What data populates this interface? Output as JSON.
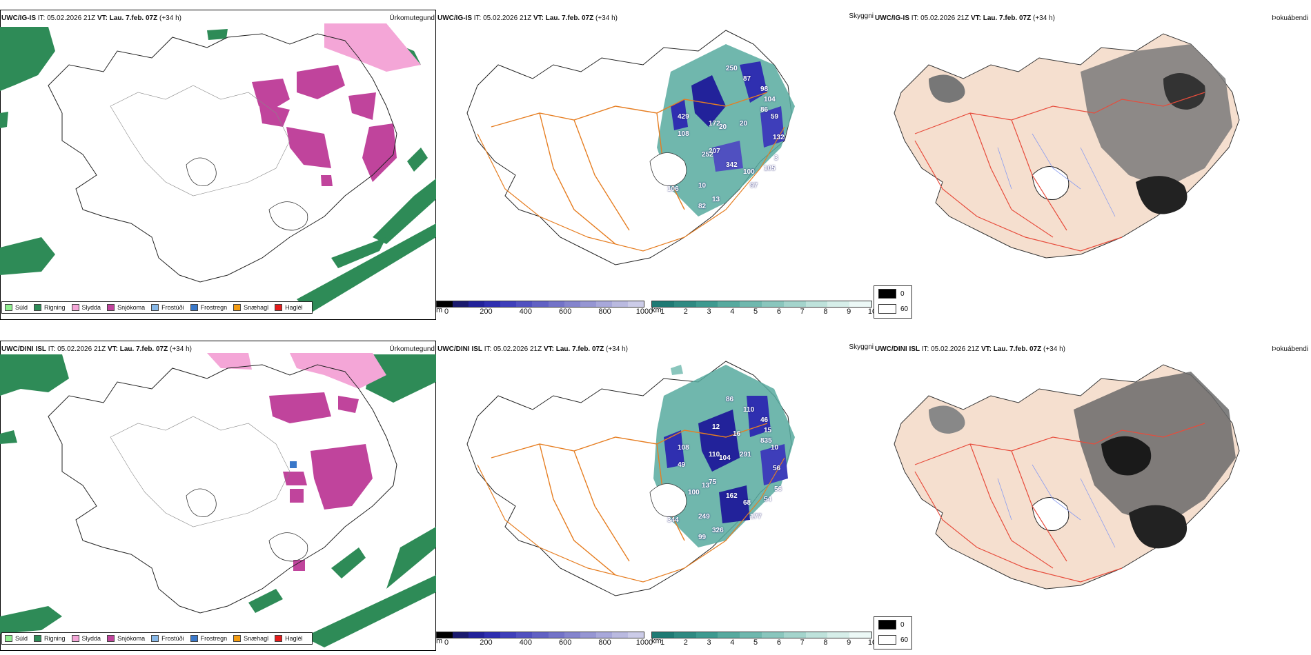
{
  "rows": [
    {
      "model": "UWC/IG-IS",
      "it_label": "IT:",
      "it_value": "05.02.2026 21Z",
      "vt_label": "VT:",
      "vt_value": "Lau. 7.feb. 07Z",
      "lead": "(+34 h)"
    },
    {
      "model": "UWC/DINI ISL",
      "it_label": "IT:",
      "it_value": "05.02.2026 21Z",
      "vt_label": "VT:",
      "vt_value": "Lau. 7.feb. 07Z",
      "lead": "(+34 h)"
    }
  ],
  "panel_titles": {
    "precip_type": "Úrkomutegund",
    "visibility": "Skyggni",
    "fog": "Þokuábendi"
  },
  "precip_legend": [
    {
      "label": "Súld",
      "color": "#90ee90"
    },
    {
      "label": "Rigning",
      "color": "#2e8b57"
    },
    {
      "label": "Slydda",
      "color": "#f4a6d7"
    },
    {
      "label": "Snjókoma",
      "color": "#c0449c"
    },
    {
      "label": "Frostúði",
      "color": "#87b8e8"
    },
    {
      "label": "Frostregn",
      "color": "#3a78c9"
    },
    {
      "label": "Snæhagl",
      "color": "#f39c12"
    },
    {
      "label": "Haglél",
      "color": "#e51c1c"
    }
  ],
  "cloudbase_bar": {
    "unit": "m",
    "ticks": [
      "0",
      "200",
      "400",
      "600",
      "800",
      "1000"
    ],
    "colors": [
      "#000000",
      "#1a1a6e",
      "#22229a",
      "#2f2fb0",
      "#3e3eba",
      "#5050c0",
      "#6161c4",
      "#7373c8",
      "#8484cd",
      "#9696d3",
      "#a8a8da",
      "#babae0",
      "#ccccE8"
    ]
  },
  "visibility_bar": {
    "unit": "km",
    "ticks": [
      "1",
      "2",
      "3",
      "4",
      "5",
      "6",
      "7",
      "8",
      "9",
      "10"
    ],
    "colors": [
      "#1f7a74",
      "#2f8a82",
      "#3e9a90",
      "#57aa9f",
      "#70b8ae",
      "#8ac6bd",
      "#a4d4cc",
      "#bee2db",
      "#d6eee9",
      "#ecf8f6"
    ]
  },
  "fog_key": {
    "labels": [
      "0",
      "60"
    ],
    "colors": [
      "#000000",
      "#ffffff"
    ]
  },
  "visibility_labels": {
    "row1": [
      "250",
      "87",
      "98",
      "104",
      "86",
      "59",
      "132",
      "429",
      "108",
      "172",
      "20",
      "20",
      "100",
      "105",
      "97",
      "342",
      "207",
      "252",
      "82",
      "106",
      "10",
      "13",
      "3"
    ],
    "row2": [
      "86",
      "110",
      "46",
      "15",
      "835",
      "10",
      "56",
      "108",
      "49",
      "110",
      "104",
      "291",
      "68",
      "54",
      "177",
      "162",
      "75",
      "13",
      "99",
      "344",
      "249",
      "326",
      "56",
      "12",
      "16",
      "100"
    ]
  }
}
